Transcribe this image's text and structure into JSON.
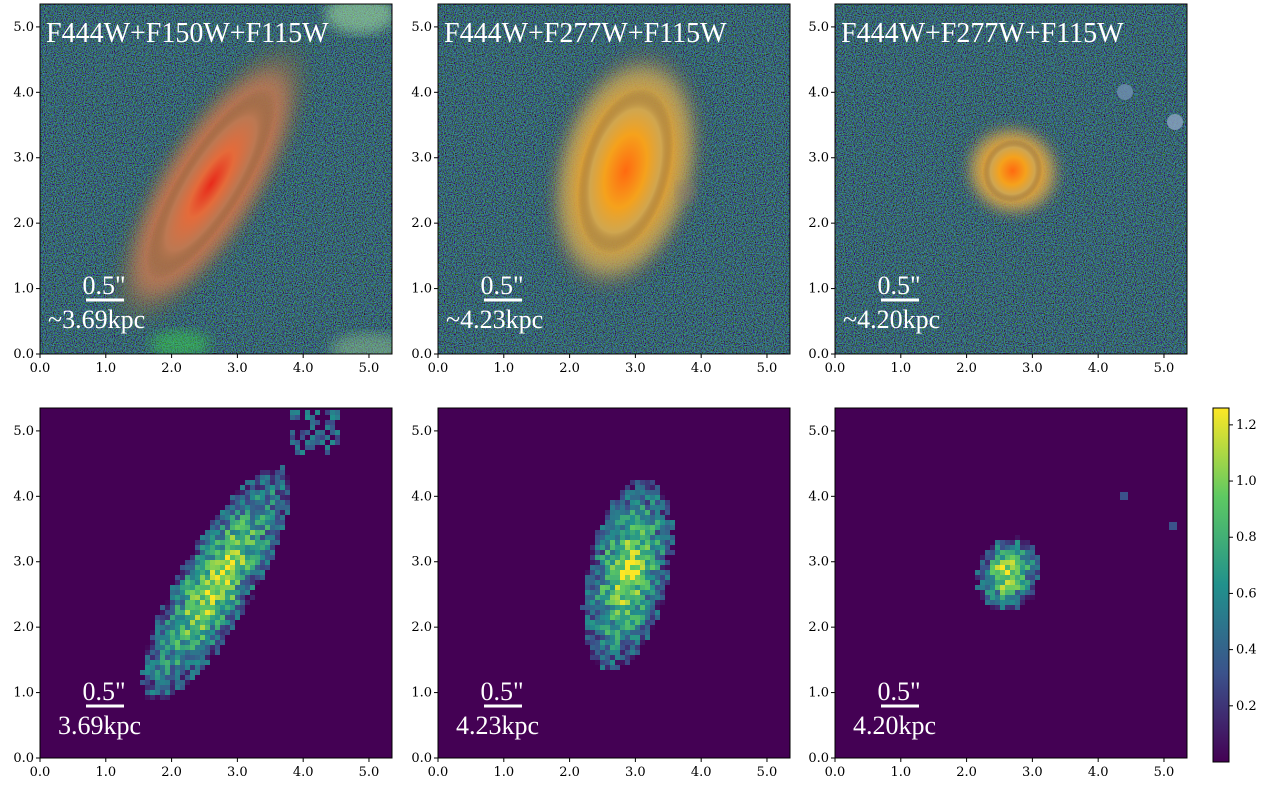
{
  "figure": {
    "axis_ticks": [
      "0.0",
      "1.0",
      "2.0",
      "3.0",
      "4.0",
      "5.0"
    ],
    "axis_range": [
      0,
      5.35
    ],
    "background_map_color": "#440154",
    "panels": [
      {
        "id": "rgb-1",
        "row": 0,
        "col": 0,
        "kind": "rgb",
        "title": "F444W+F150W+F115W",
        "scale_label": "0.5\"",
        "scale_kpc": "~3.69kpc",
        "galaxy": {
          "cx": 2.6,
          "cy": 2.6,
          "major": 2.1,
          "minor": 0.55,
          "angle_deg": 58
        },
        "tint": "red"
      },
      {
        "id": "rgb-2",
        "row": 0,
        "col": 1,
        "kind": "rgb",
        "title": "F444W+F277W+F115W",
        "scale_label": "0.5\"",
        "scale_kpc": "~4.23kpc",
        "galaxy": {
          "cx": 2.85,
          "cy": 2.8,
          "major": 1.6,
          "minor": 0.75,
          "angle_deg": 75
        },
        "tint": "orange"
      },
      {
        "id": "rgb-3",
        "row": 0,
        "col": 2,
        "kind": "rgb",
        "title": "F444W+F277W+F115W",
        "scale_label": "0.5\"",
        "scale_kpc": "~4.20kpc",
        "galaxy": {
          "cx": 2.7,
          "cy": 2.8,
          "major": 0.6,
          "minor": 0.5,
          "angle_deg": 70
        },
        "tint": "orange"
      },
      {
        "id": "map-1",
        "row": 1,
        "col": 0,
        "kind": "map",
        "title": "",
        "scale_label": "0.5\"",
        "scale_kpc": "3.69kpc",
        "galaxy": {
          "cx": 2.65,
          "cy": 2.7,
          "major": 2.0,
          "minor": 0.55,
          "angle_deg": 60
        }
      },
      {
        "id": "map-2",
        "row": 1,
        "col": 1,
        "kind": "map",
        "title": "",
        "scale_label": "0.5\"",
        "scale_kpc": "4.23kpc",
        "galaxy": {
          "cx": 2.85,
          "cy": 2.85,
          "major": 1.45,
          "minor": 0.6,
          "angle_deg": 78
        }
      },
      {
        "id": "map-3",
        "row": 1,
        "col": 2,
        "kind": "map",
        "title": "",
        "scale_label": "0.5\"",
        "scale_kpc": "4.20kpc",
        "galaxy": {
          "cx": 2.6,
          "cy": 2.85,
          "major": 0.55,
          "minor": 0.45,
          "angle_deg": 70
        }
      }
    ],
    "colorbar": {
      "ticks": [
        "0.2",
        "0.4",
        "0.6",
        "0.8",
        "1.0",
        "1.2"
      ],
      "tick_values": [
        0.2,
        0.4,
        0.6,
        0.8,
        1.0,
        1.2
      ],
      "range": [
        0.0,
        1.26
      ],
      "colors": [
        "#440154",
        "#3b528b",
        "#21918c",
        "#5ec962",
        "#fde725"
      ]
    }
  }
}
